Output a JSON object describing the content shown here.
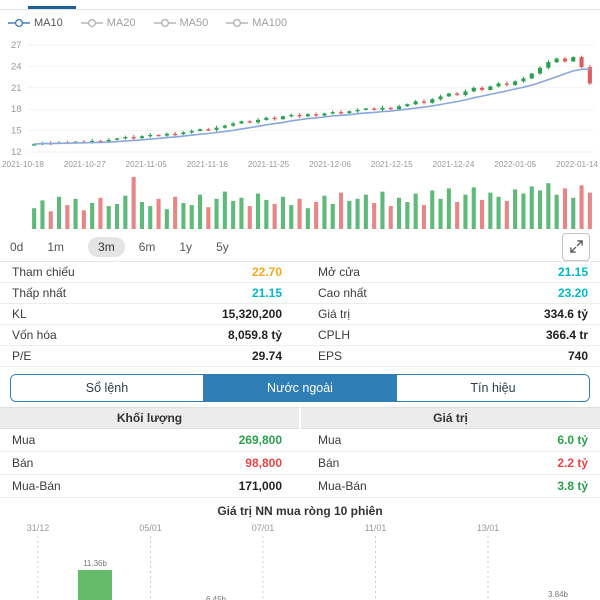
{
  "colors": {
    "accent_blue": "#2f7fb6",
    "green": "#2aa14c",
    "red": "#e05c5c",
    "teal": "#00b8cc",
    "amber": "#f2a91e",
    "ma_line": "#8aa8dc",
    "grey_text": "#999999",
    "nn_bar_green": "#66bb6a"
  },
  "legend": {
    "items": [
      {
        "label": "MA10",
        "active": true
      },
      {
        "label": "MA20",
        "active": false
      },
      {
        "label": "MA50",
        "active": false
      },
      {
        "label": "MA100",
        "active": false
      }
    ]
  },
  "ranges": {
    "items": [
      "0d",
      "1m",
      "3m",
      "6m",
      "1y",
      "5y"
    ],
    "selected": "3m"
  },
  "info": {
    "rows": [
      {
        "l1": "Tham chiếu",
        "v1": "22.70",
        "l2": "Mở cửa",
        "v2": "21.15"
      },
      {
        "l1": "Thấp nhất",
        "v1": "21.15",
        "l2": "Cao nhất",
        "v2": "23.20"
      },
      {
        "l1": "KL",
        "v1": "15,320,200",
        "l2": "Giá trị",
        "v2": "334.6 tỷ"
      },
      {
        "l1": "Vốn hóa",
        "v1": "8,059.8 tỷ",
        "l2": "CPLH",
        "v2": "366.4 tr"
      },
      {
        "l1": "P/E",
        "v1": "29.74",
        "l2": "EPS",
        "v2": "740"
      }
    ]
  },
  "tabs": {
    "items": [
      "Sổ lệnh",
      "Nước ngoài",
      "Tín hiệu"
    ],
    "active": "Nước ngoài"
  },
  "foreign": {
    "header_left": "Khối lượng",
    "header_right": "Giá trị",
    "volume_rows": [
      {
        "label": "Mua",
        "value": "269,800"
      },
      {
        "label": "Bán",
        "value": "98,800"
      },
      {
        "label": "Mua-Bán",
        "value": "171,000"
      }
    ],
    "value_rows": [
      {
        "label": "Mua",
        "value": "6.0 tỷ"
      },
      {
        "label": "Bán",
        "value": "2.2 tỷ"
      },
      {
        "label": "Mua-Bán",
        "value": "3.8 tỷ"
      }
    ]
  },
  "chart_data": [
    {
      "type": "candlestick",
      "title": "",
      "x_labels": [
        "2021-10-18",
        "2021-10-27",
        "2021-11-05",
        "2021-11-16",
        "2021-11-25",
        "2021-12-06",
        "2021-12-15",
        "2021-12-24",
        "2022-01-05",
        "2022-01-14"
      ],
      "y_ticks": [
        27,
        24,
        21,
        18,
        15,
        12
      ],
      "ylim": [
        12,
        27
      ],
      "ma_window": 10,
      "legend": [
        "MA10",
        "MA20",
        "MA50",
        "MA100"
      ],
      "closes": [
        13.1,
        13.25,
        13.2,
        13.35,
        13.3,
        13.45,
        13.4,
        13.55,
        13.5,
        13.7,
        13.9,
        14.1,
        13.95,
        14.2,
        14.4,
        14.3,
        14.55,
        14.5,
        14.75,
        14.95,
        15.2,
        15.1,
        15.4,
        15.7,
        16.0,
        16.3,
        16.15,
        16.5,
        16.8,
        16.6,
        17.0,
        17.2,
        17.0,
        17.3,
        17.1,
        17.4,
        17.6,
        17.45,
        17.7,
        17.9,
        18.1,
        17.95,
        18.2,
        18.0,
        18.4,
        18.7,
        19.1,
        18.9,
        19.4,
        19.8,
        20.2,
        20.0,
        20.5,
        21.0,
        20.7,
        21.2,
        21.6,
        21.4,
        21.9,
        22.3,
        23.0,
        23.8,
        24.6,
        25.1,
        24.7,
        25.3,
        23.9,
        21.6
      ]
    },
    {
      "type": "bar",
      "name": "volume",
      "values": [
        40,
        55,
        34,
        62,
        46,
        58,
        36,
        50,
        60,
        44,
        48,
        64,
        100,
        52,
        44,
        58,
        38,
        62,
        50,
        46,
        66,
        42,
        58,
        72,
        54,
        60,
        44,
        68,
        56,
        48,
        62,
        46,
        58,
        40,
        52,
        64,
        48,
        70,
        54,
        58,
        66,
        50,
        72,
        44,
        60,
        52,
        68,
        46,
        74,
        58,
        78,
        52,
        66,
        80,
        56,
        70,
        62,
        54,
        76,
        68,
        82,
        74,
        88,
        66,
        78,
        60,
        84,
        70
      ]
    },
    {
      "type": "bar",
      "name": "foreign-net-buy-10-sessions",
      "title": "Giá trị NN mua ròng 10 phiên",
      "x_labels": [
        "31/12",
        "05/01",
        "07/01",
        "11/01",
        "13/01"
      ],
      "unit": "b",
      "bars": [
        {
          "label": "11.36b",
          "value": 11.36
        },
        {
          "label": "6.45b",
          "value": 6.45
        },
        {
          "label": "3.84b",
          "value": 3.84
        }
      ]
    }
  ]
}
